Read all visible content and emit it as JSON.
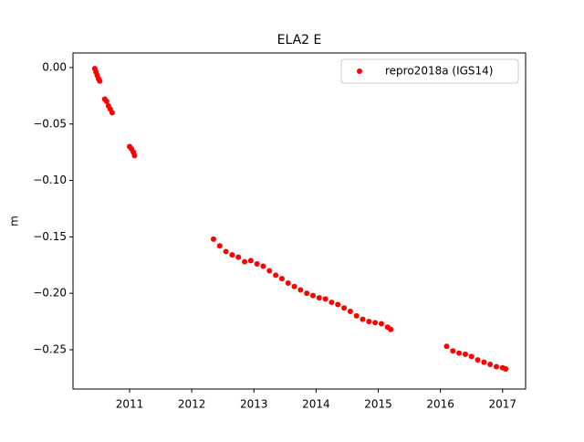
{
  "chart_data": {
    "type": "scatter",
    "title": "ELA2 E",
    "y_label": "m",
    "x": [
      2010.44,
      2010.46,
      2010.48,
      2010.5,
      2010.52,
      2010.6,
      2010.63,
      2010.66,
      2010.69,
      2010.72,
      2011.0,
      2011.03,
      2011.06,
      2011.08,
      2012.35,
      2012.45,
      2012.55,
      2012.65,
      2012.75,
      2012.85,
      2012.95,
      2013.05,
      2013.15,
      2013.25,
      2013.35,
      2013.45,
      2013.55,
      2013.65,
      2013.75,
      2013.85,
      2013.95,
      2014.05,
      2014.15,
      2014.25,
      2014.35,
      2014.45,
      2014.55,
      2014.65,
      2014.75,
      2014.85,
      2014.95,
      2015.05,
      2015.15,
      2015.2,
      2016.1,
      2016.2,
      2016.3,
      2016.4,
      2016.5,
      2016.6,
      2016.7,
      2016.8,
      2016.9,
      2017.0,
      2017.05
    ],
    "series": [
      {
        "name": "repro2018a (IGS14)",
        "color": "#ff0000",
        "values": [
          -0.001,
          -0.004,
          -0.007,
          -0.01,
          -0.012,
          -0.028,
          -0.03,
          -0.034,
          -0.037,
          -0.04,
          -0.07,
          -0.072,
          -0.075,
          -0.078,
          -0.152,
          -0.158,
          -0.163,
          -0.166,
          -0.168,
          -0.172,
          -0.171,
          -0.174,
          -0.176,
          -0.18,
          -0.184,
          -0.187,
          -0.191,
          -0.194,
          -0.197,
          -0.2,
          -0.202,
          -0.204,
          -0.205,
          -0.208,
          -0.21,
          -0.213,
          -0.216,
          -0.22,
          -0.223,
          -0.225,
          -0.226,
          -0.227,
          -0.23,
          -0.232,
          -0.247,
          -0.251,
          -0.253,
          -0.254,
          -0.256,
          -0.259,
          -0.261,
          -0.263,
          -0.265,
          -0.266,
          -0.267
        ]
      }
    ],
    "xlim": [
      2010.09,
      2017.37
    ],
    "xticks": [
      2011,
      2012,
      2013,
      2014,
      2015,
      2016,
      2017
    ],
    "ylim": [
      -0.2848,
      0.0129
    ],
    "yticks": [
      {
        "value": 0,
        "label": "0.00"
      },
      {
        "value": -0.05,
        "label": "−0.05"
      },
      {
        "value": -0.1,
        "label": "−0.10"
      },
      {
        "value": -0.15,
        "label": "−0.15"
      },
      {
        "value": -0.2,
        "label": "−0.20"
      },
      {
        "value": -0.25,
        "label": "−0.25"
      }
    ],
    "legend": "upper right",
    "grid": false
  }
}
